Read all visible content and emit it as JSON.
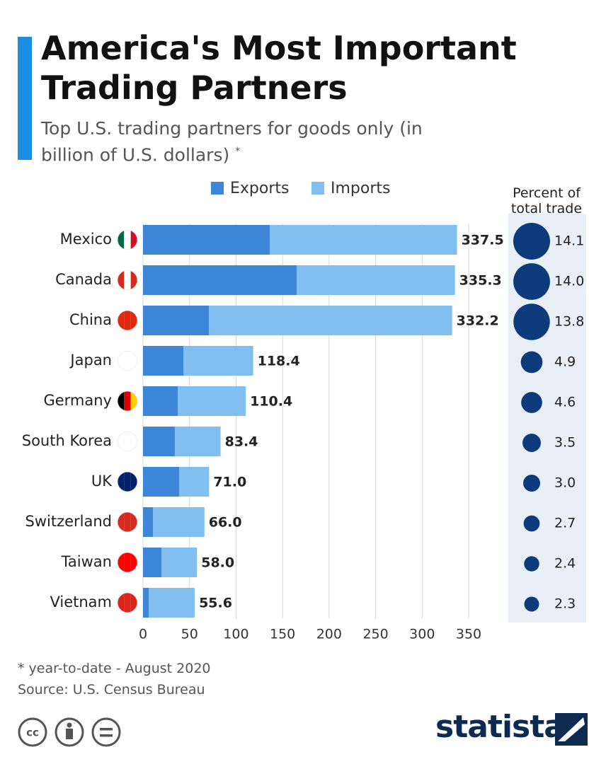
{
  "chart_data": {
    "type": "stacked-bar",
    "title": "America's Most Important Trading Partners",
    "subtitle": "Top U.S. trading partners for goods only (in billion of U.S. dollars)",
    "subtitle_mark": "*",
    "categories": [
      "Mexico",
      "Canada",
      "China",
      "Japan",
      "Germany",
      "South Korea",
      "UK",
      "Switzerland",
      "Taiwan",
      "Vietnam"
    ],
    "series": [
      {
        "name": "Exports",
        "color": "#3d85d6",
        "values": [
          136.2,
          165.1,
          70.8,
          43.4,
          37.3,
          34.2,
          38.8,
          10.7,
          19.8,
          6.1
        ]
      },
      {
        "name": "Imports",
        "color": "#80bff0",
        "values": [
          201.3,
          170.2,
          261.4,
          75.0,
          73.1,
          49.2,
          32.2,
          55.3,
          38.2,
          49.5
        ]
      }
    ],
    "totals": {
      "values": [
        337.5,
        335.3,
        332.2,
        118.4,
        110.4,
        83.4,
        71,
        66,
        58,
        55.6
      ],
      "value_labels": [
        "337.5",
        "335.3",
        "332.2",
        "118.4",
        "110.4",
        "83.4",
        "71.0",
        "66.0",
        "58.0",
        "55.6"
      ]
    },
    "share": {
      "title": "Percent of total trade",
      "color": "#0d3a7a",
      "values": [
        14.1,
        14,
        13.8,
        4.9,
        4.6,
        3.5,
        3,
        2.7,
        2.4,
        2.3
      ],
      "value_labels": [
        "14.1",
        "14.0",
        "13.8",
        "4.9",
        "4.6",
        "3.5",
        "3.0",
        "2.7",
        "2.4",
        "2.3"
      ]
    },
    "xlim": [
      0,
      350
    ],
    "xticks": [
      0,
      50,
      100,
      150,
      200,
      250,
      300,
      350
    ],
    "grid": true,
    "footnote": "* year-to-date - August 2020",
    "source": "Source: U.S. Census Bureau",
    "brand": "statista"
  }
}
